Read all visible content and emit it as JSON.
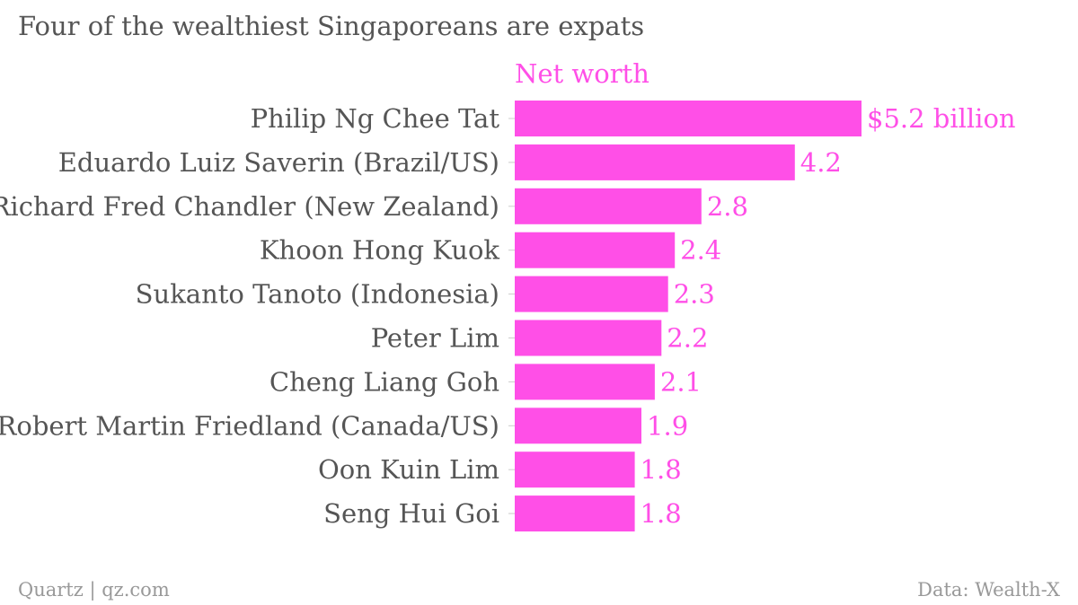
{
  "chart_data": {
    "type": "bar",
    "orientation": "horizontal",
    "title": "Four of the wealthiest Singaporeans are expats",
    "series": [
      {
        "name": "Net worth",
        "color": "#ff4fe7",
        "values": [
          5.2,
          4.2,
          2.8,
          2.4,
          2.3,
          2.2,
          2.1,
          1.9,
          1.8,
          1.8
        ]
      }
    ],
    "categories": [
      "Philip Ng Chee Tat",
      "Eduardo Luiz Saverin (Brazil/US)",
      "Richard Fred Chandler (New Zealand)",
      "Khoon Hong Kuok",
      "Sukanto Tanoto (Indonesia)",
      "Peter Lim",
      "Cheng Liang Goh",
      "Robert Martin Friedland (Canada/US)",
      "Oon Kuin Lim",
      "Seng Hui Goi"
    ],
    "value_labels": [
      "$5.2 billion",
      "4.2",
      "2.8",
      "2.4",
      "2.3",
      "2.2",
      "2.1",
      "1.9",
      "1.8",
      "1.8"
    ],
    "xlim": [
      0,
      5.2
    ],
    "grid": false,
    "legend": "top"
  },
  "footer": {
    "source": "Quartz | qz.com",
    "credit": "Data: Wealth-X"
  },
  "colors": {
    "bar": "#ff4fe7",
    "label_text": "#555555",
    "footer_text": "#999999",
    "axis_tick": "#cccccc"
  }
}
